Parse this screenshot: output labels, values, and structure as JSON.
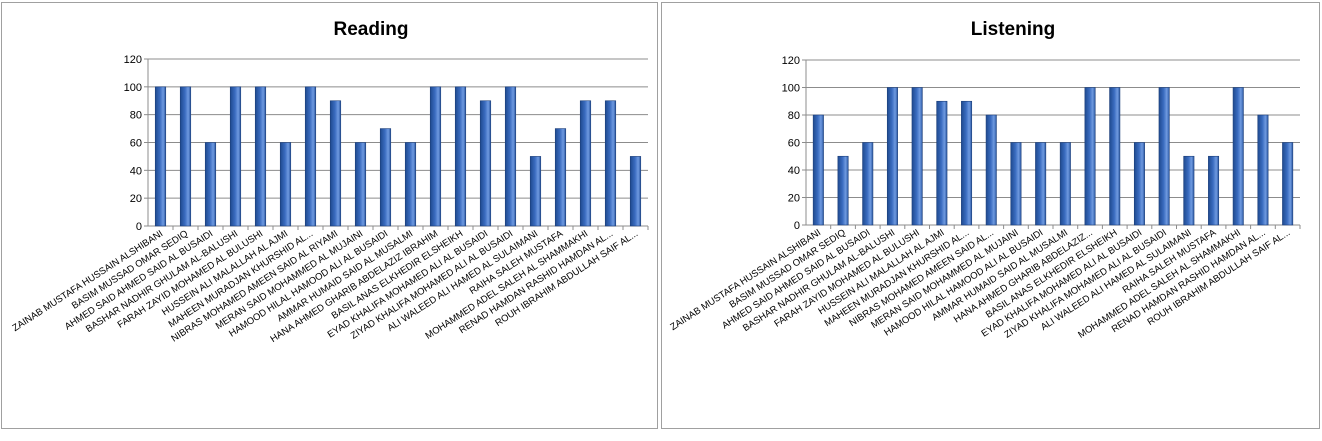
{
  "chart_data": [
    {
      "type": "bar",
      "title": "Reading",
      "xlabel": "",
      "ylabel": "",
      "ylim": [
        0,
        120
      ],
      "yticks": [
        0,
        20,
        40,
        60,
        80,
        100,
        120
      ],
      "grid": true,
      "legend": "none",
      "bar_color": "#3a6cc0",
      "categories": [
        "ZAINAB MUSTAFA HUSSAIN ALSHIBANI",
        "BASIM MUSSAD OMAR SEDIQ",
        "AHMED SAID AHMED  SAID AL BUSAIDI",
        "BASHAR NADHIR GHULAM AL-BALUSHI",
        "FARAH ZAYID MOHAMED  AL BULUSHI",
        "HUSSEIN ALI MALALLAH AL AJMI",
        "MAHEEN MURADJAN KHURSHID  AL...",
        "NIBRAS MOHAMED AMEEN SAID AL RIYAMI",
        "MERAN SAID MOHAMMED AL MUJAINI",
        "HAMOOD HILAL HAMOOD ALI  AL BUSAIDI",
        "AMMAR HUMAID SAID AL MUSALMI",
        "HANA AHMED GHARIB ABDELAZIZ IBRAHIM",
        "BASIL ANAS ELKHEDIR ELSHEIKH",
        "EYAD KHALIFA MOHAMED ALI AL BUSAIDI",
        "ZIYAD KHALIFA MOHAMED ALI AL BUSAIDI",
        "ALI WALEED ALI HAMED  AL SULAIMANI",
        "RAIHA SALEH MUSTAFA",
        "MOHAMMED ADEL SALEH AL SHAMMAKHI",
        "RENAD HAMDAN RASHID HAMDAN AL...",
        "ROUH IBRAHIM ABDULLAH SAIF AL..."
      ],
      "values": [
        100,
        100,
        60,
        100,
        100,
        60,
        100,
        90,
        60,
        70,
        60,
        100,
        100,
        90,
        100,
        50,
        70,
        90,
        90,
        50
      ]
    },
    {
      "type": "bar",
      "title": "Listening",
      "xlabel": "",
      "ylabel": "",
      "ylim": [
        0,
        120
      ],
      "yticks": [
        0,
        20,
        40,
        60,
        80,
        100,
        120
      ],
      "grid": true,
      "legend": "none",
      "bar_color": "#3a6cc0",
      "categories": [
        "ZAINAB MUSTAFA HUSSAIN ALSHIBANI",
        "BASIM MUSSAD OMAR SEDIQ",
        "AHMED SAID AHMED  SAID AL BUSAIDI",
        "BASHAR NADHIR GHULAM AL-BALUSHI",
        "FARAH ZAYID MOHAMED  AL BULUSHI",
        "HUSSEIN ALI MALALLAH AL AJMI",
        "MAHEEN MURADJAN KHURSHID  AL...",
        "NIBRAS MOHAMED AMEEN SAID AL...",
        "MERAN SAID MOHAMMED AL MUJAINI",
        "HAMOOD HILAL HAMOOD ALI  AL BUSAIDI",
        "AMMAR HUMAID SAID AL MUSALMI",
        "HANA AHMED GHARIB ABDELAZIZ...",
        "BASIL ANAS ELKHEDIR ELSHEIKH",
        "EYAD KHALIFA MOHAMED ALI AL BUSAIDI",
        "ZIYAD KHALIFA MOHAMED ALI AL BUSAIDI",
        "ALI WALEED ALI HAMED  AL SULAIMANI",
        "RAIHA SALEH MUSTAFA",
        "MOHAMMED ADEL SALEH AL SHAMMAKHI",
        "RENAD HAMDAN RASHID HAMDAN AL...",
        "ROUH IBRAHIM ABDULLAH SAIF AL..."
      ],
      "values": [
        80,
        50,
        60,
        100,
        100,
        90,
        90,
        80,
        60,
        60,
        60,
        100,
        100,
        60,
        100,
        50,
        50,
        100,
        80,
        60
      ]
    }
  ]
}
